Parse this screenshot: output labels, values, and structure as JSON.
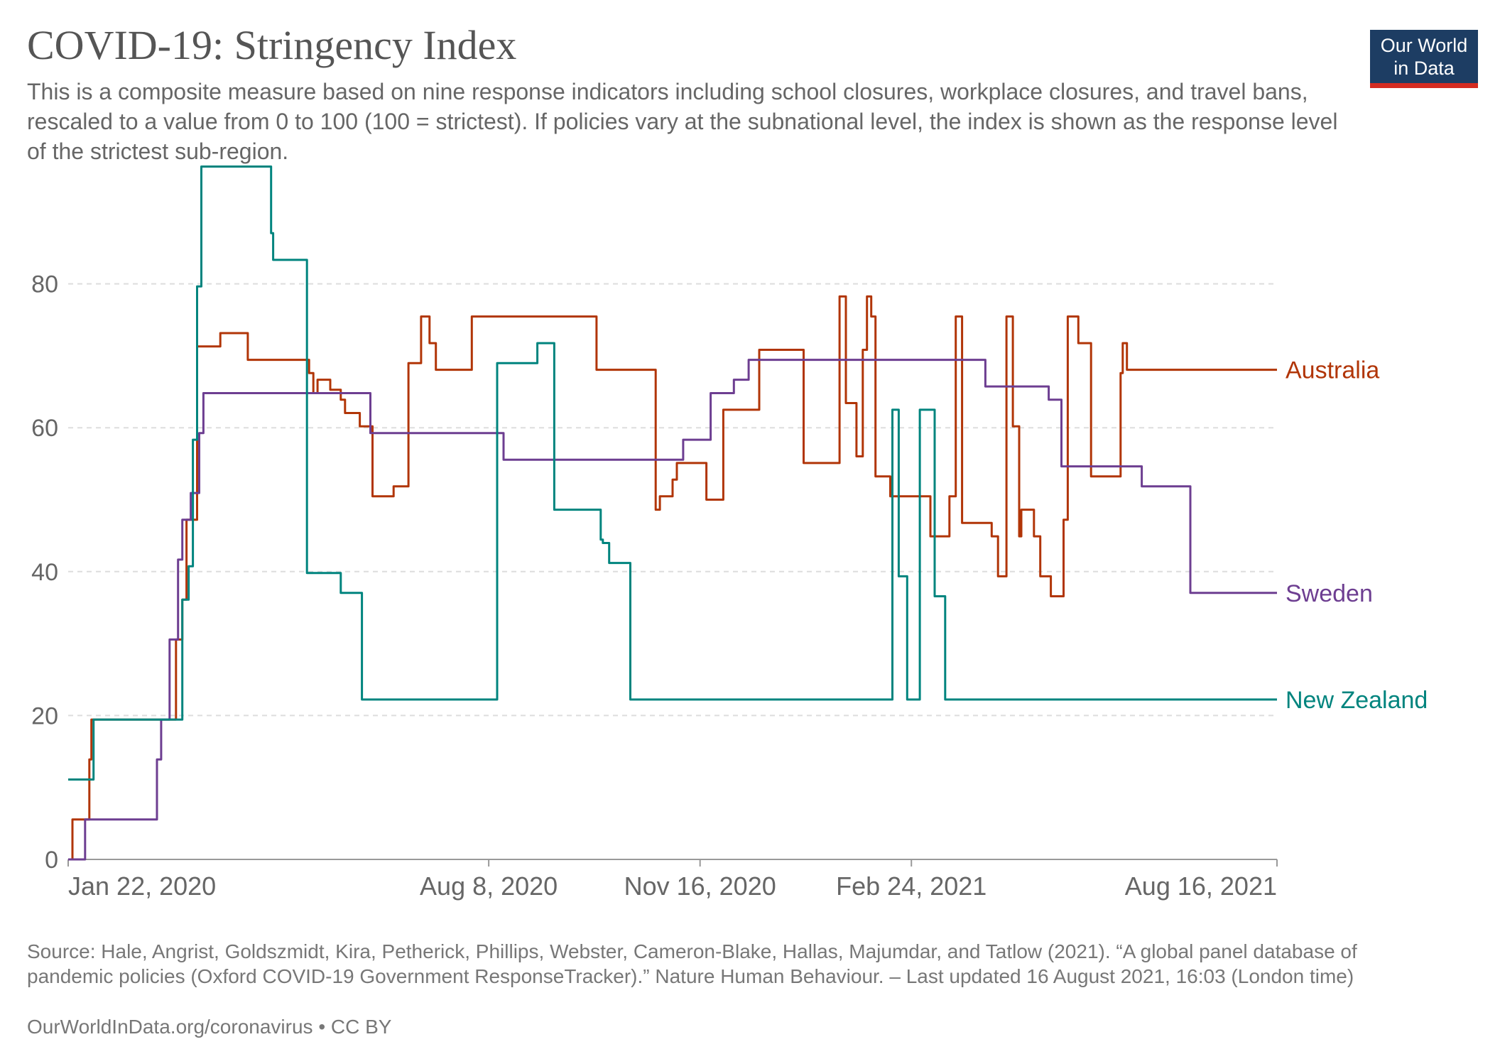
{
  "header": {
    "title": "COVID-19: Stringency Index",
    "subtitle": "This is a composite measure based on nine response indicators including school closures, workplace closures, and travel bans, rescaled to a value from 0 to 100 (100 = strictest). If policies vary at the subnational level, the index is shown as the response level of the strictest sub-region.",
    "logo_line1": "Our World",
    "logo_line2": "in Data"
  },
  "footer": {
    "source": "Source: Hale, Angrist, Goldszmidt, Kira, Petherick, Phillips, Webster, Cameron-Blake, Hallas, Majumdar, and Tatlow (2021). “A global panel database of pandemic policies (Oxford COVID-19 Government ResponseTracker).” Nature Human Behaviour. – Last updated 16 August 2021, 16:03 (London time)",
    "credit": "OurWorldInData.org/coronavirus • CC BY"
  },
  "colors": {
    "Australia": "#b13507",
    "Sweden": "#6d3e91",
    "New Zealand": "#00847e",
    "grid": "#dddddd",
    "text": "#666666"
  },
  "chart_data": {
    "type": "line",
    "xlabel": "",
    "ylabel": "",
    "xlim": [
      "2020-01-22",
      "2021-08-16"
    ],
    "ylim": [
      0,
      100
    ],
    "yticks": [
      0,
      20,
      40,
      60,
      80
    ],
    "ytick_labels": [
      "0",
      "20",
      "40",
      "60",
      "80"
    ],
    "xticks": [
      "2020-01-22",
      "2020-08-08",
      "2020-11-16",
      "2021-02-24",
      "2021-08-16"
    ],
    "xtick_labels": [
      "Jan 22, 2020",
      "Aug 8, 2020",
      "Nov 16, 2020",
      "Feb 24, 2021",
      "Aug 16, 2021"
    ],
    "grid": true,
    "legend": "end-of-line labels",
    "series": [
      {
        "name": "Australia",
        "step": true,
        "points": [
          [
            "2020-01-22",
            0
          ],
          [
            "2020-01-24",
            5.56
          ],
          [
            "2020-02-01",
            13.89
          ],
          [
            "2020-02-02",
            19.44
          ],
          [
            "2020-03-13",
            30.56
          ],
          [
            "2020-03-16",
            36.11
          ],
          [
            "2020-03-18",
            47.22
          ],
          [
            "2020-03-23",
            71.3
          ],
          [
            "2020-04-03",
            73.15
          ],
          [
            "2020-04-16",
            69.44
          ],
          [
            "2020-05-15",
            67.59
          ],
          [
            "2020-05-17",
            64.81
          ],
          [
            "2020-05-19",
            66.67
          ],
          [
            "2020-05-25",
            65.28
          ],
          [
            "2020-05-30",
            63.89
          ],
          [
            "2020-06-01",
            62.04
          ],
          [
            "2020-06-08",
            60.19
          ],
          [
            "2020-06-14",
            50.46
          ],
          [
            "2020-06-24",
            51.85
          ],
          [
            "2020-07-01",
            68.98
          ],
          [
            "2020-07-07",
            75.46
          ],
          [
            "2020-07-11",
            71.76
          ],
          [
            "2020-07-14",
            68.06
          ],
          [
            "2020-07-31",
            75.46
          ],
          [
            "2020-09-28",
            68.06
          ],
          [
            "2020-10-26",
            48.61
          ],
          [
            "2020-10-28",
            50.46
          ],
          [
            "2020-11-03",
            52.78
          ],
          [
            "2020-11-05",
            55.09
          ],
          [
            "2020-11-19",
            50.0
          ],
          [
            "2020-11-27",
            62.5
          ],
          [
            "2020-12-14",
            70.83
          ],
          [
            "2021-01-04",
            55.09
          ],
          [
            "2021-01-21",
            78.24
          ],
          [
            "2021-01-24",
            63.43
          ],
          [
            "2021-01-29",
            56.02
          ],
          [
            "2021-02-01",
            70.83
          ],
          [
            "2021-02-03",
            78.24
          ],
          [
            "2021-02-05",
            75.46
          ],
          [
            "2021-02-07",
            53.24
          ],
          [
            "2021-02-14",
            50.46
          ],
          [
            "2021-03-05",
            44.91
          ],
          [
            "2021-03-14",
            50.46
          ],
          [
            "2021-03-17",
            75.46
          ],
          [
            "2021-03-20",
            46.76
          ],
          [
            "2021-04-03",
            44.91
          ],
          [
            "2021-04-06",
            39.35
          ],
          [
            "2021-04-10",
            75.46
          ],
          [
            "2021-04-13",
            60.19
          ],
          [
            "2021-04-16",
            44.91
          ],
          [
            "2021-04-17",
            48.61
          ],
          [
            "2021-04-23",
            44.91
          ],
          [
            "2021-04-26",
            39.35
          ],
          [
            "2021-05-01",
            36.57
          ],
          [
            "2021-05-07",
            47.22
          ],
          [
            "2021-05-09",
            75.46
          ],
          [
            "2021-05-14",
            71.76
          ],
          [
            "2021-05-20",
            53.24
          ],
          [
            "2021-06-03",
            67.59
          ],
          [
            "2021-06-04",
            71.76
          ],
          [
            "2021-06-06",
            68.06
          ],
          [
            "2021-08-16",
            68.06
          ]
        ]
      },
      {
        "name": "Sweden",
        "step": true,
        "points": [
          [
            "2020-01-22",
            0
          ],
          [
            "2020-01-30",
            5.56
          ],
          [
            "2020-03-04",
            13.89
          ],
          [
            "2020-03-06",
            19.44
          ],
          [
            "2020-03-10",
            30.56
          ],
          [
            "2020-03-14",
            41.67
          ],
          [
            "2020-03-16",
            47.22
          ],
          [
            "2020-03-20",
            50.93
          ],
          [
            "2020-03-24",
            59.26
          ],
          [
            "2020-03-26",
            64.81
          ],
          [
            "2020-06-13",
            59.26
          ],
          [
            "2020-08-15",
            55.56
          ],
          [
            "2020-11-08",
            58.33
          ],
          [
            "2020-11-21",
            64.81
          ],
          [
            "2020-12-02",
            66.67
          ],
          [
            "2020-12-09",
            69.44
          ],
          [
            "2021-03-31",
            65.74
          ],
          [
            "2021-04-30",
            63.89
          ],
          [
            "2021-05-06",
            54.63
          ],
          [
            "2021-06-13",
            51.85
          ],
          [
            "2021-07-06",
            37.04
          ],
          [
            "2021-08-16",
            37.04
          ]
        ]
      },
      {
        "name": "New Zealand",
        "step": true,
        "points": [
          [
            "2020-01-22",
            11.11
          ],
          [
            "2020-02-03",
            19.44
          ],
          [
            "2020-03-16",
            36.11
          ],
          [
            "2020-03-19",
            40.74
          ],
          [
            "2020-03-21",
            58.33
          ],
          [
            "2020-03-23",
            79.63
          ],
          [
            "2020-03-25",
            96.3
          ],
          [
            "2020-04-27",
            87.04
          ],
          [
            "2020-04-28",
            83.33
          ],
          [
            "2020-05-14",
            39.81
          ],
          [
            "2020-05-30",
            37.04
          ],
          [
            "2020-06-09",
            22.22
          ],
          [
            "2020-08-12",
            68.98
          ],
          [
            "2020-08-31",
            71.76
          ],
          [
            "2020-09-08",
            48.61
          ],
          [
            "2020-09-30",
            44.44
          ],
          [
            "2020-10-01",
            43.98
          ],
          [
            "2020-10-04",
            41.2
          ],
          [
            "2020-10-14",
            22.22
          ],
          [
            "2021-02-15",
            62.5
          ],
          [
            "2021-02-18",
            39.35
          ],
          [
            "2021-02-22",
            22.22
          ],
          [
            "2021-02-28",
            62.5
          ],
          [
            "2021-03-07",
            36.57
          ],
          [
            "2021-03-12",
            22.22
          ],
          [
            "2021-08-16",
            22.22
          ]
        ]
      }
    ]
  }
}
